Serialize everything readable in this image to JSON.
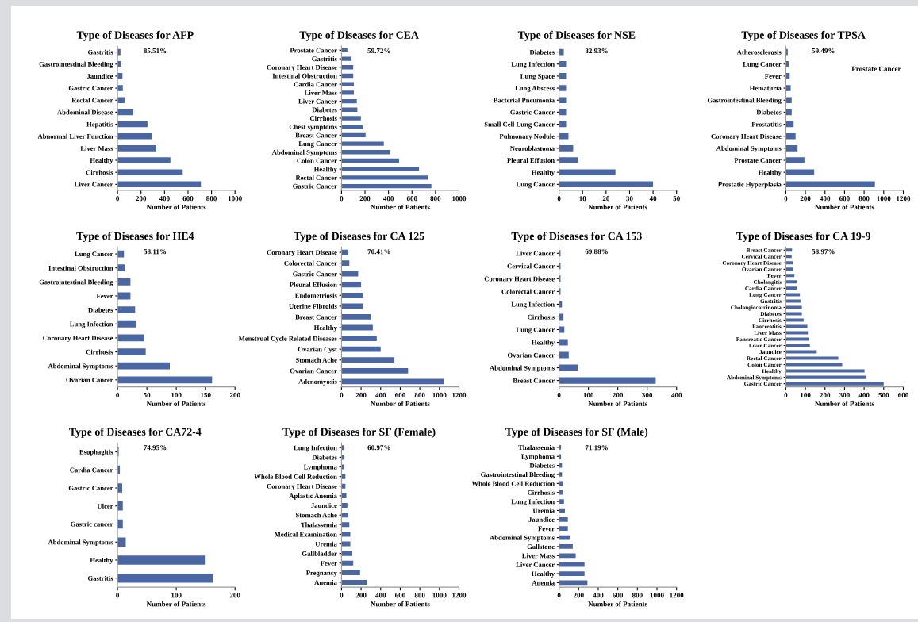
{
  "chart_data": [
    {
      "type": "bar",
      "orientation": "horizontal",
      "title": "Type of Diseases for AFP",
      "xlabel": "Number of Patients",
      "annotations": [
        "85.51%"
      ],
      "color": "#4a67a3",
      "xlim": [
        0,
        1000
      ],
      "xticks": [
        0,
        200,
        400,
        600,
        800,
        1000
      ],
      "categories": [
        "Gastritis",
        "Gastrointestinal Bleeding",
        "Jaundice",
        "Gastric Cancer",
        "Rectal Cancer",
        "Abdominal Disease",
        "Hepatitis",
        "Abnormal Liver Function",
        "Liver Mass",
        "Healthy",
        "Cirrhosis",
        "Liver Cancer"
      ],
      "values": [
        25,
        30,
        42,
        45,
        60,
        135,
        255,
        295,
        330,
        450,
        555,
        710
      ]
    },
    {
      "type": "bar",
      "orientation": "horizontal",
      "title": "Type of Diseases for CEA",
      "xlabel": "Number of Patients",
      "annotations": [
        "59.72%"
      ],
      "color": "#4a67a3",
      "xlim": [
        0,
        1000
      ],
      "xticks": [
        0,
        200,
        400,
        600,
        800,
        1000
      ],
      "categories": [
        "Prostate Cancer",
        "Gastritis",
        "Coronary Heart Disease",
        "Intestinal Obstruction",
        "Cardia Cancer",
        "Liver Mass",
        "Liver Cancer",
        "Diabetes",
        "Cirrhosis",
        "Chest symptoms",
        "Breast Cancer",
        "Lung Cancer",
        "Abdominal Symptoms",
        "Colon Cancer",
        "Healthy",
        "Rectal Cancer",
        "Gastric Cancer"
      ],
      "values": [
        50,
        85,
        100,
        100,
        105,
        105,
        130,
        135,
        165,
        185,
        205,
        360,
        415,
        490,
        660,
        735,
        765
      ]
    },
    {
      "type": "bar",
      "orientation": "horizontal",
      "title": "Type of Diseases for NSE",
      "xlabel": "Number of Patients",
      "annotations": [
        "82.93%"
      ],
      "color": "#4a67a3",
      "xlim": [
        0,
        50
      ],
      "xticks": [
        0,
        10,
        20,
        30,
        40,
        50
      ],
      "categories": [
        "Diabetes",
        "Lung Infection",
        "Lung Space",
        "Lung Abscess",
        "Bacterial Pneumonia",
        "Gastric Cancer",
        "Small Cell Lung Cancer",
        "Pulmonary Nodule",
        "Neuroblastoma",
        "Pleural Effusion",
        "Healthy",
        "Lung Cancer"
      ],
      "values": [
        2,
        3,
        3,
        3,
        3,
        3,
        3,
        4,
        6,
        8,
        24,
        40
      ]
    },
    {
      "type": "bar",
      "orientation": "horizontal",
      "title": "Type of Diseases for TPSA",
      "xlabel": "Number of Patients",
      "annotations": [
        "59.49%",
        "Prostate Cancer"
      ],
      "color": "#4a67a3",
      "xlim": [
        0,
        1200
      ],
      "xticks": [
        0,
        200,
        400,
        600,
        800,
        1000,
        1200
      ],
      "categories": [
        "Atherosclerosis",
        "Lung Cancer",
        "Fever",
        "Hematuria",
        "Gastrointestinal Bleeding",
        "Diabetes",
        "Prostatitis",
        "Coronary Heart Disease",
        "Abdominal Symptoms",
        "Prostate Cancer",
        "Healthy",
        "Prostatic Hyperplasia"
      ],
      "values": [
        20,
        30,
        40,
        50,
        60,
        60,
        80,
        100,
        120,
        190,
        290,
        910
      ]
    },
    {
      "type": "bar",
      "orientation": "horizontal",
      "title": "Type of Diseases for HE4",
      "xlabel": "Number of Patients",
      "annotations": [
        "58.11%"
      ],
      "color": "#4a67a3",
      "xlim": [
        0,
        200
      ],
      "xticks": [
        0,
        50,
        100,
        150,
        200
      ],
      "categories": [
        "Lung Cancer",
        "Intestinal Obstruction",
        "Gastrointestinal Bleeding",
        "Fever",
        "Diabetes",
        "Lung Infection",
        "Coronary Heart Disease",
        "Cirrhosis",
        "Abdominal Symptoms",
        "Ovarian Cancer"
      ],
      "values": [
        11,
        12,
        22,
        22,
        30,
        32,
        45,
        48,
        89,
        161
      ]
    },
    {
      "type": "bar",
      "orientation": "horizontal",
      "title": "Type of Diseases for CA 125",
      "xlabel": "Number of Patients",
      "annotations": [
        "70.41%"
      ],
      "color": "#4a67a3",
      "xlim": [
        0,
        1200
      ],
      "xticks": [
        0,
        200,
        400,
        600,
        800,
        1000,
        1200
      ],
      "categories": [
        "Coronary Heart Disease",
        "Colorectal Cancer",
        "Gastric Cancer",
        "Pleural Effusion",
        "Endometriosis",
        "Uterine Fibroids",
        "Breast Cancer",
        "Healthy",
        "Menstrual Cycle Related Diseases",
        "Ovarian Cyst",
        "Stomach Ache",
        "Ovarian Cancer",
        "Adenomyosis"
      ],
      "values": [
        70,
        80,
        170,
        200,
        220,
        220,
        300,
        320,
        360,
        400,
        540,
        680,
        1050
      ]
    },
    {
      "type": "bar",
      "orientation": "horizontal",
      "title": "Type of Diseases for CA 153",
      "xlabel": "Number of Patients",
      "annotations": [
        "69.88%"
      ],
      "color": "#4a67a3",
      "xlim": [
        0,
        400
      ],
      "xticks": [
        0,
        100,
        200,
        300,
        400
      ],
      "categories": [
        "Liver Cancer",
        "Cervical Cancer",
        "Coronary Heart Disease",
        "Colorectal Cancer",
        "Lung Infection",
        "Cirrhosis",
        "Lung Cancer",
        "Healthy",
        "Ovarian Cancer",
        "Abdominal Symptoms",
        "Breast Cancer"
      ],
      "values": [
        5,
        5,
        5,
        5,
        10,
        15,
        18,
        30,
        33,
        64,
        329
      ]
    },
    {
      "type": "bar",
      "orientation": "horizontal",
      "title": "Type of Diseases for CA 19-9",
      "xlabel": "Number of Patients",
      "annotations": [
        "58.97%"
      ],
      "color": "#4a67a3",
      "xlim": [
        0,
        600
      ],
      "xticks": [
        0,
        100,
        200,
        300,
        400,
        500,
        600
      ],
      "categories": [
        "Breast Cancer",
        "Cervical Cancer",
        "Coronary Heart Disease",
        "Ovarian Cancer",
        "Fever",
        "Cholangitis",
        "Cardia Cancer",
        "Lung Cancer",
        "Gastritis",
        "Cholangiocarcinoma",
        "Diabetes",
        "Cirrhosis",
        "Pancreatitis",
        "Liver Mass",
        "Pancreatic Cancer",
        "Liver Cancer",
        "Jaundice",
        "Rectal Cancer",
        "Colon Cancer",
        "Healthy",
        "Abdominal Symptoms",
        "Gastric Cancer"
      ],
      "values": [
        32,
        30,
        38,
        38,
        44,
        56,
        56,
        72,
        75,
        82,
        82,
        91,
        110,
        113,
        117,
        123,
        158,
        268,
        288,
        402,
        412,
        500
      ]
    },
    {
      "type": "bar",
      "orientation": "horizontal",
      "title": "Type of Diseases for CA72-4",
      "xlabel": "Number of Patients",
      "annotations": [
        "74.95%"
      ],
      "color": "#4a67a3",
      "xlim": [
        0,
        200
      ],
      "xticks": [
        0,
        100,
        200
      ],
      "categories": [
        "Esophagitis",
        "Cardia Cancer",
        "Gastric Cancer",
        "Ulcer",
        "Gastric cancer",
        "Abdominal Symptoms",
        "Healthy",
        "Gastritis"
      ],
      "values": [
        2,
        4,
        8,
        9,
        9,
        14,
        150,
        162
      ]
    },
    {
      "type": "bar",
      "orientation": "horizontal",
      "title": "Type of Diseases for SF (Female)",
      "xlabel": "Number of Patients",
      "annotations": [
        "60.97%"
      ],
      "color": "#4a67a3",
      "xlim": [
        0,
        1200
      ],
      "xticks": [
        0,
        200,
        400,
        600,
        800,
        1000,
        1200
      ],
      "categories": [
        "Lung Infection",
        "Diabetes",
        "Lymphoma",
        "Whole Blood Cell Reduction",
        "Coronary Heart Disease",
        "Aplastic Anemia",
        "Jaundice",
        "Stomach Ache",
        "Thalassemia",
        "Medical Examination",
        "Uremia",
        "Gallbladder",
        "Fever",
        "Pregnancy",
        "Anemia"
      ],
      "values": [
        30,
        30,
        30,
        40,
        40,
        50,
        60,
        70,
        80,
        90,
        90,
        110,
        120,
        190,
        260
      ]
    },
    {
      "type": "bar",
      "orientation": "horizontal",
      "title": "Type of Diseases for SF (Male)",
      "xlabel": "Number of Patients",
      "annotations": [
        "71.19%"
      ],
      "color": "#4a67a3",
      "xlim": [
        0,
        1200
      ],
      "xticks": [
        0,
        200,
        400,
        600,
        800,
        1000,
        1200
      ],
      "categories": [
        "Thalassemia",
        "Lymphoma",
        "Diabetes",
        "Gastrointestinal Bleeding",
        "Whole Blood Cell Reduction",
        "Cirrhosis",
        "Lung Infection",
        "Uremia",
        "Jaundice",
        "Fever",
        "Abdominal Symptoms",
        "Gallstone",
        "Liver Mass",
        "Liver Cancer",
        "Healthy",
        "Anemia"
      ],
      "values": [
        20,
        20,
        30,
        30,
        40,
        40,
        50,
        60,
        90,
        90,
        110,
        140,
        170,
        260,
        260,
        290
      ]
    }
  ]
}
